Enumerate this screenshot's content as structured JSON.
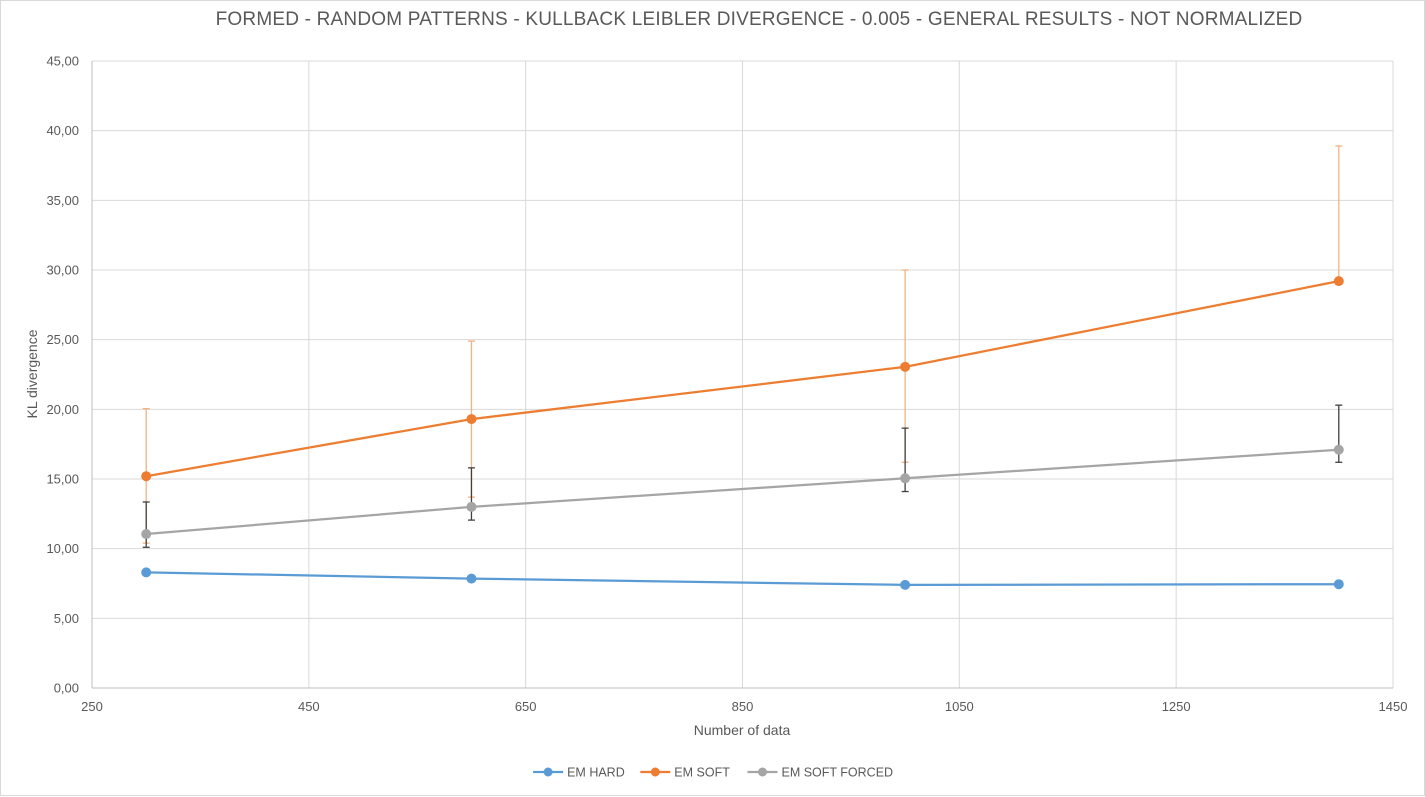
{
  "chart_data": {
    "type": "line",
    "title": "FORMED - RANDOM PATTERNS - KULLBACK LEIBLER DIVERGENCE - 0.005 - GENERAL RESULTS - NOT NORMALIZED",
    "xlabel": "Number of data",
    "ylabel": "KL divergence",
    "xlim": [
      250,
      1450
    ],
    "ylim": [
      0,
      45
    ],
    "x_ticks": [
      "250",
      "450",
      "650",
      "850",
      "1050",
      "1250",
      "1450"
    ],
    "x_tick_values": [
      250,
      450,
      650,
      850,
      1050,
      1250,
      1450
    ],
    "y_ticks": [
      "0,00",
      "5,00",
      "10,00",
      "15,00",
      "20,00",
      "25,00",
      "30,00",
      "35,00",
      "40,00",
      "45,00"
    ],
    "y_tick_values": [
      0,
      5,
      10,
      15,
      20,
      25,
      30,
      35,
      40,
      45
    ],
    "grid": true,
    "legend_position": "bottom",
    "x": [
      300,
      600,
      1000,
      1400
    ],
    "series": [
      {
        "name": "EM HARD",
        "color": "#5b9bd5",
        "values": [
          8.3,
          7.85,
          7.4,
          7.45
        ],
        "error_low": [
          8.3,
          7.85,
          7.4,
          7.45
        ],
        "error_high": [
          8.3,
          7.85,
          7.4,
          7.45
        ],
        "error_color": "#5b9bd5"
      },
      {
        "name": "EM SOFT",
        "color": "#ed7d31",
        "values": [
          15.2,
          19.3,
          23.05,
          29.2
        ],
        "error_low": [
          10.4,
          13.7,
          16.2,
          29.2
        ],
        "error_high": [
          20.05,
          24.9,
          30.0,
          38.9
        ],
        "error_color": "#f4b183"
      },
      {
        "name": "EM SOFT FORCED",
        "color": "#a5a5a5",
        "values": [
          11.05,
          13.0,
          15.05,
          17.1
        ],
        "error_low": [
          10.1,
          12.05,
          14.1,
          16.2
        ],
        "error_high": [
          13.35,
          15.8,
          18.65,
          20.3
        ],
        "error_color": "#404040"
      }
    ]
  }
}
